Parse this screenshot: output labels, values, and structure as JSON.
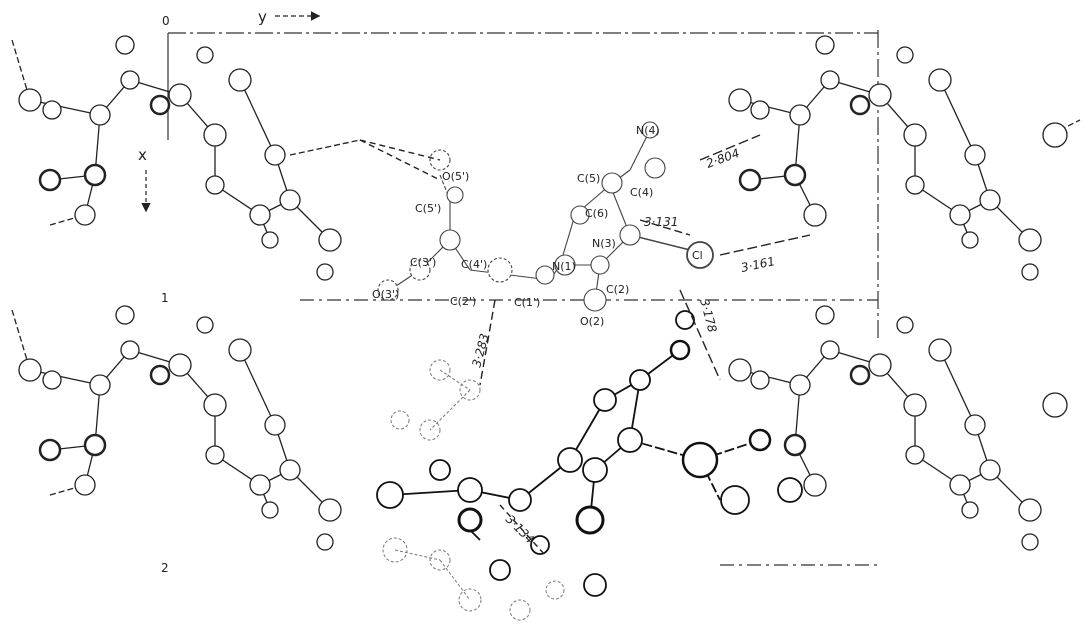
{
  "figure": {
    "axes": {
      "origin": "0",
      "y_axis": "y",
      "x_axis": "x",
      "row_marks": [
        "1",
        "2"
      ]
    },
    "atom_labels": {
      "N4": "N(4)",
      "C5": "C(5)",
      "C4": "C(4)",
      "C6": "C(6)",
      "N3": "N(3)",
      "Cl": "Cl",
      "N1": "N(1)",
      "C2": "C(2)",
      "O2": "O(2)",
      "O5p": "O(5')",
      "C5p": "C(5')",
      "C3p": "C(3')",
      "C4p": "C(4')",
      "O3p": "O(3')",
      "C2p": "C(2')",
      "C1p": "C(1')"
    },
    "distances": {
      "d1": "2·804",
      "d2": "3·131",
      "d3": "3·161",
      "d4": "3·178",
      "d5": "3·283",
      "d6": "3·134"
    }
  }
}
